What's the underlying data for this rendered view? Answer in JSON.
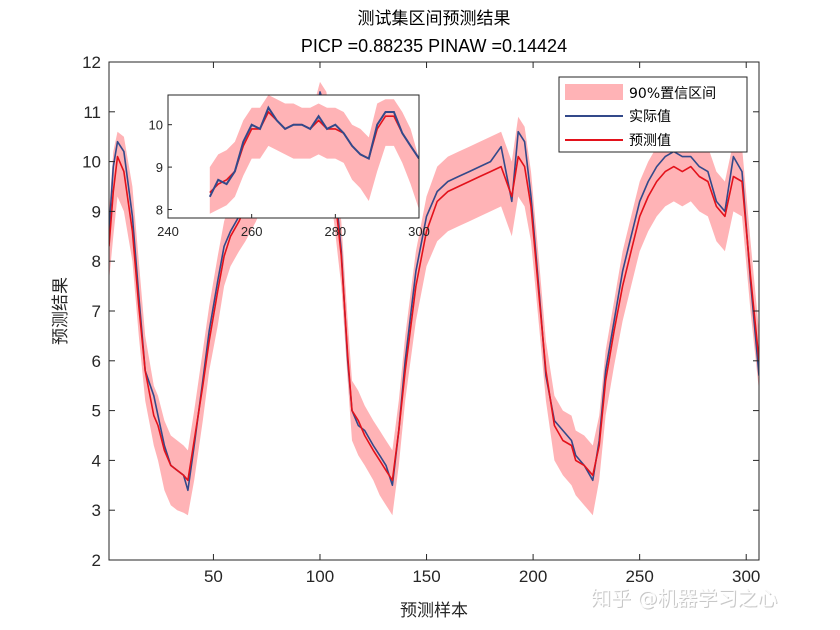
{
  "watermark": "知乎 @机器学习之心",
  "chart_data": {
    "type": "line",
    "title": "测试集区间预测结果",
    "subtitle": "PICP =0.88235 PINAW =0.14424",
    "xlabel": "预测样本",
    "ylabel": "预测结果",
    "xlim": [
      1,
      306
    ],
    "ylim": [
      2,
      12
    ],
    "xticks": [
      50,
      100,
      150,
      200,
      250,
      300
    ],
    "yticks": [
      2,
      3,
      4,
      5,
      6,
      7,
      8,
      9,
      10,
      11,
      12
    ],
    "grid": false,
    "legend": {
      "position": "top-right",
      "entries": [
        {
          "label": "90%置信区间",
          "color": "#ffb3b6",
          "kind": "band"
        },
        {
          "label": "实际值",
          "color": "#33498a",
          "kind": "line"
        },
        {
          "label": "预测值",
          "color": "#e3121b",
          "kind": "line"
        }
      ]
    },
    "series": [
      {
        "name": "实际值",
        "color": "#33498a",
        "x": [
          1,
          3,
          5,
          8,
          12,
          15,
          18,
          22,
          24,
          27,
          30,
          33,
          36,
          38,
          41,
          45,
          48,
          52,
          55,
          58,
          62,
          65,
          70,
          75,
          80,
          85,
          90,
          95,
          100,
          103,
          106,
          110,
          113,
          115,
          118,
          121,
          125,
          128,
          131,
          134,
          137,
          140,
          145,
          150,
          155,
          160,
          165,
          170,
          175,
          180,
          185,
          190,
          193,
          196,
          199,
          203,
          206,
          210,
          214,
          218,
          220,
          224,
          228,
          231,
          234,
          238,
          242,
          246,
          250,
          254,
          258,
          262,
          266,
          270,
          274,
          278,
          282,
          286,
          290,
          294,
          298,
          302,
          306
        ],
        "values": [
          8.6,
          9.9,
          10.4,
          10.2,
          8.9,
          7.3,
          5.8,
          5.3,
          4.9,
          4.3,
          3.9,
          3.8,
          3.7,
          3.4,
          4.3,
          5.6,
          6.6,
          7.6,
          8.3,
          8.6,
          8.9,
          9.3,
          9.7,
          10.2,
          10.4,
          10.3,
          10.5,
          10.2,
          11.4,
          11.0,
          10.0,
          8.2,
          6.0,
          5.0,
          4.7,
          4.6,
          4.3,
          4.1,
          3.9,
          3.5,
          4.6,
          6.0,
          7.8,
          8.9,
          9.4,
          9.6,
          9.7,
          9.8,
          9.9,
          10.0,
          10.3,
          9.2,
          10.6,
          10.4,
          9.3,
          7.3,
          5.7,
          4.8,
          4.6,
          4.4,
          4.1,
          3.9,
          3.6,
          4.4,
          5.8,
          6.8,
          7.8,
          8.5,
          9.2,
          9.6,
          9.9,
          10.1,
          10.2,
          10.1,
          10.1,
          9.9,
          9.8,
          9.2,
          9.0,
          10.1,
          9.8,
          7.6,
          5.7
        ]
      },
      {
        "name": "预测值",
        "color": "#e3121b",
        "x": [
          1,
          3,
          5,
          8,
          12,
          15,
          18,
          22,
          24,
          27,
          30,
          33,
          36,
          38,
          41,
          45,
          48,
          52,
          55,
          58,
          62,
          65,
          70,
          75,
          80,
          85,
          90,
          95,
          100,
          103,
          106,
          110,
          113,
          115,
          118,
          121,
          125,
          128,
          131,
          134,
          137,
          140,
          145,
          150,
          155,
          160,
          165,
          170,
          175,
          180,
          185,
          190,
          193,
          196,
          199,
          203,
          206,
          210,
          214,
          218,
          220,
          224,
          228,
          231,
          234,
          238,
          242,
          246,
          250,
          254,
          258,
          262,
          266,
          270,
          274,
          278,
          282,
          286,
          290,
          294,
          298,
          302,
          306
        ],
        "values": [
          8.3,
          9.4,
          10.1,
          9.8,
          8.6,
          7.1,
          5.8,
          4.9,
          4.7,
          4.2,
          3.9,
          3.8,
          3.7,
          3.6,
          4.4,
          5.5,
          6.4,
          7.4,
          8.1,
          8.5,
          8.8,
          9.1,
          9.5,
          10.0,
          10.1,
          10.0,
          10.1,
          10.0,
          10.9,
          10.6,
          9.7,
          8.1,
          6.1,
          5.0,
          4.8,
          4.5,
          4.2,
          4.0,
          3.8,
          3.6,
          4.6,
          5.8,
          7.5,
          8.6,
          9.2,
          9.4,
          9.5,
          9.6,
          9.7,
          9.8,
          9.9,
          9.3,
          10.1,
          9.9,
          9.1,
          7.2,
          5.8,
          4.7,
          4.4,
          4.3,
          4.0,
          3.9,
          3.7,
          4.3,
          5.6,
          6.6,
          7.5,
          8.2,
          8.9,
          9.3,
          9.6,
          9.8,
          9.9,
          9.8,
          9.9,
          9.7,
          9.6,
          9.1,
          8.9,
          9.7,
          9.6,
          7.7,
          6.0
        ]
      },
      {
        "name": "90%置信区间",
        "color": "#ffb3b6",
        "x": [
          1,
          3,
          5,
          8,
          12,
          15,
          18,
          22,
          24,
          27,
          30,
          33,
          36,
          38,
          41,
          45,
          48,
          52,
          55,
          58,
          62,
          65,
          70,
          75,
          80,
          85,
          90,
          95,
          100,
          103,
          106,
          110,
          113,
          115,
          118,
          121,
          125,
          128,
          131,
          134,
          137,
          140,
          145,
          150,
          155,
          160,
          165,
          170,
          175,
          180,
          185,
          190,
          193,
          196,
          199,
          203,
          206,
          210,
          214,
          218,
          220,
          224,
          228,
          231,
          234,
          238,
          242,
          246,
          250,
          254,
          258,
          262,
          266,
          270,
          274,
          278,
          282,
          286,
          290,
          294,
          298,
          302,
          306
        ],
        "lower": [
          7.6,
          8.5,
          9.3,
          9.0,
          8.0,
          6.5,
          5.2,
          4.3,
          4.0,
          3.4,
          3.1,
          3.0,
          2.95,
          2.9,
          3.6,
          4.8,
          5.8,
          6.7,
          7.5,
          7.9,
          8.2,
          8.4,
          8.8,
          9.3,
          9.4,
          9.3,
          9.4,
          9.3,
          10.0,
          9.8,
          9.0,
          7.5,
          5.6,
          4.4,
          4.1,
          3.9,
          3.6,
          3.3,
          3.1,
          2.9,
          3.9,
          5.2,
          6.8,
          7.9,
          8.4,
          8.6,
          8.7,
          8.8,
          8.9,
          9.0,
          9.1,
          8.5,
          9.3,
          9.1,
          8.4,
          6.6,
          5.2,
          4.0,
          3.7,
          3.5,
          3.3,
          3.1,
          2.9,
          3.6,
          4.9,
          5.9,
          6.8,
          7.5,
          8.2,
          8.6,
          8.9,
          9.1,
          9.2,
          9.1,
          9.2,
          9.0,
          8.9,
          8.4,
          8.2,
          9.0,
          8.9,
          7.0,
          5.4
        ],
        "upper": [
          9.0,
          10.2,
          10.6,
          10.5,
          9.5,
          8.0,
          6.5,
          5.5,
          5.3,
          4.8,
          4.5,
          4.4,
          4.3,
          4.2,
          5.0,
          6.2,
          7.1,
          8.1,
          8.8,
          9.2,
          9.5,
          9.8,
          10.2,
          10.8,
          10.9,
          10.8,
          10.9,
          10.8,
          11.6,
          11.4,
          10.4,
          8.8,
          6.8,
          5.6,
          5.4,
          5.1,
          4.8,
          4.6,
          4.4,
          4.2,
          5.2,
          6.5,
          8.2,
          9.3,
          9.9,
          10.1,
          10.2,
          10.3,
          10.4,
          10.5,
          10.6,
          10.0,
          10.9,
          10.7,
          9.8,
          7.9,
          6.4,
          5.3,
          5.0,
          4.9,
          4.6,
          4.5,
          4.3,
          4.9,
          6.2,
          7.2,
          8.2,
          8.9,
          9.6,
          10.0,
          10.3,
          10.5,
          10.6,
          10.5,
          10.6,
          10.4,
          10.3,
          9.8,
          9.6,
          10.4,
          10.3,
          8.4,
          6.6
        ]
      }
    ],
    "inset": {
      "xlim": [
        240,
        300
      ],
      "ylim": [
        7.8,
        10.7
      ],
      "xticks": [
        240,
        260,
        280,
        300
      ],
      "yticks": [
        8,
        9,
        10
      ],
      "x": [
        250,
        252,
        254,
        256,
        258,
        260,
        262,
        264,
        266,
        268,
        270,
        272,
        274,
        276,
        278,
        280,
        282,
        284,
        286,
        288,
        290,
        292,
        294,
        296,
        298,
        300
      ],
      "actual": [
        8.3,
        8.7,
        8.6,
        8.9,
        9.6,
        10.0,
        9.9,
        10.4,
        10.1,
        9.9,
        10.0,
        10.0,
        9.9,
        10.2,
        9.9,
        10.0,
        9.8,
        9.5,
        9.3,
        9.2,
        10.0,
        10.3,
        10.3,
        9.8,
        9.5,
        9.2
      ],
      "predicted": [
        8.4,
        8.6,
        8.7,
        8.9,
        9.5,
        9.9,
        9.9,
        10.3,
        10.1,
        9.9,
        10.0,
        10.0,
        9.9,
        10.1,
        9.9,
        9.9,
        9.8,
        9.5,
        9.3,
        9.2,
        9.9,
        10.2,
        10.2,
        9.8,
        9.5,
        9.2
      ],
      "lower": [
        7.9,
        8.0,
        8.1,
        8.3,
        8.8,
        9.2,
        9.2,
        9.5,
        9.4,
        9.3,
        9.2,
        9.2,
        9.2,
        9.3,
        9.2,
        9.2,
        9.1,
        8.7,
        8.5,
        8.2,
        8.9,
        9.5,
        9.5,
        9.1,
        8.6,
        8.0
      ],
      "upper": [
        9.0,
        9.3,
        9.4,
        9.6,
        10.1,
        10.4,
        10.4,
        10.7,
        10.6,
        10.5,
        10.5,
        10.4,
        10.4,
        10.5,
        10.4,
        10.4,
        10.3,
        10.0,
        9.9,
        9.7,
        10.5,
        10.6,
        10.6,
        10.3,
        9.9,
        9.2
      ]
    }
  }
}
